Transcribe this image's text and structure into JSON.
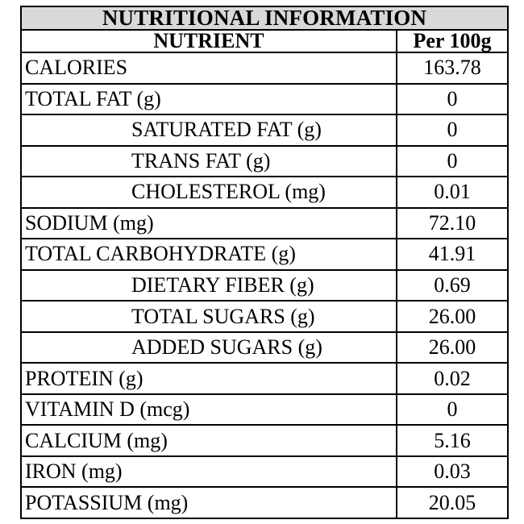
{
  "title": "NUTRITIONAL INFORMATION",
  "headers": {
    "nutrient": "NUTRIENT",
    "per": "Per 100g"
  },
  "rows": [
    {
      "name": "CALORIES",
      "value": "163.78",
      "indent": false
    },
    {
      "name": "TOTAL FAT (g)",
      "value": "0",
      "indent": false
    },
    {
      "name": "SATURATED FAT (g)",
      "value": "0",
      "indent": true
    },
    {
      "name": "TRANS FAT (g)",
      "value": "0",
      "indent": true
    },
    {
      "name": "CHOLESTEROL (mg)",
      "value": "0.01",
      "indent": true
    },
    {
      "name": "SODIUM (mg)",
      "value": "72.10",
      "indent": false
    },
    {
      "name": "TOTAL CARBOHYDRATE (g)",
      "value": "41.91",
      "indent": false
    },
    {
      "name": "DIETARY FIBER (g)",
      "value": "0.69",
      "indent": true
    },
    {
      "name": "TOTAL SUGARS (g)",
      "value": "26.00",
      "indent": true
    },
    {
      "name": "ADDED SUGARS (g)",
      "value": "26.00",
      "indent": true
    },
    {
      "name": "PROTEIN (g)",
      "value": "0.02",
      "indent": false
    },
    {
      "name": "VITAMIN D (mcg)",
      "value": "0",
      "indent": false
    },
    {
      "name": "CALCIUM (mg)",
      "value": "5.16",
      "indent": false
    },
    {
      "name": "IRON (mg)",
      "value": "0.03",
      "indent": false
    },
    {
      "name": "POTASSIUM (mg)",
      "value": "20.05",
      "indent": false
    }
  ],
  "colors": {
    "title_background": "#d9d9d9",
    "border": "#000000",
    "text": "#000000"
  }
}
